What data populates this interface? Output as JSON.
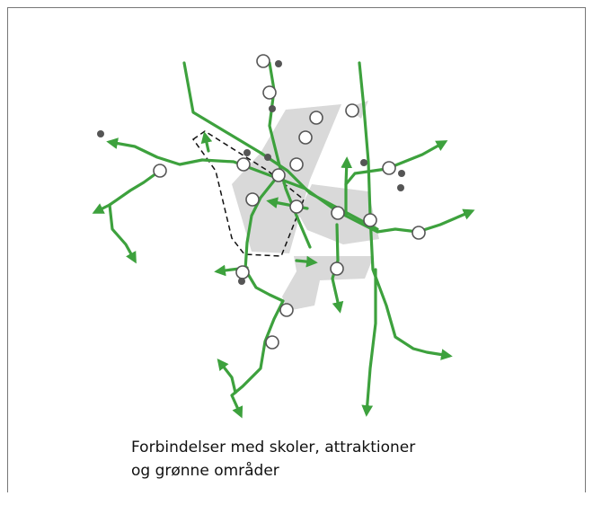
{
  "caption": {
    "lines": [
      "Forbindelser med skoler, attraktioner",
      "og grønne områder"
    ]
  }
}
